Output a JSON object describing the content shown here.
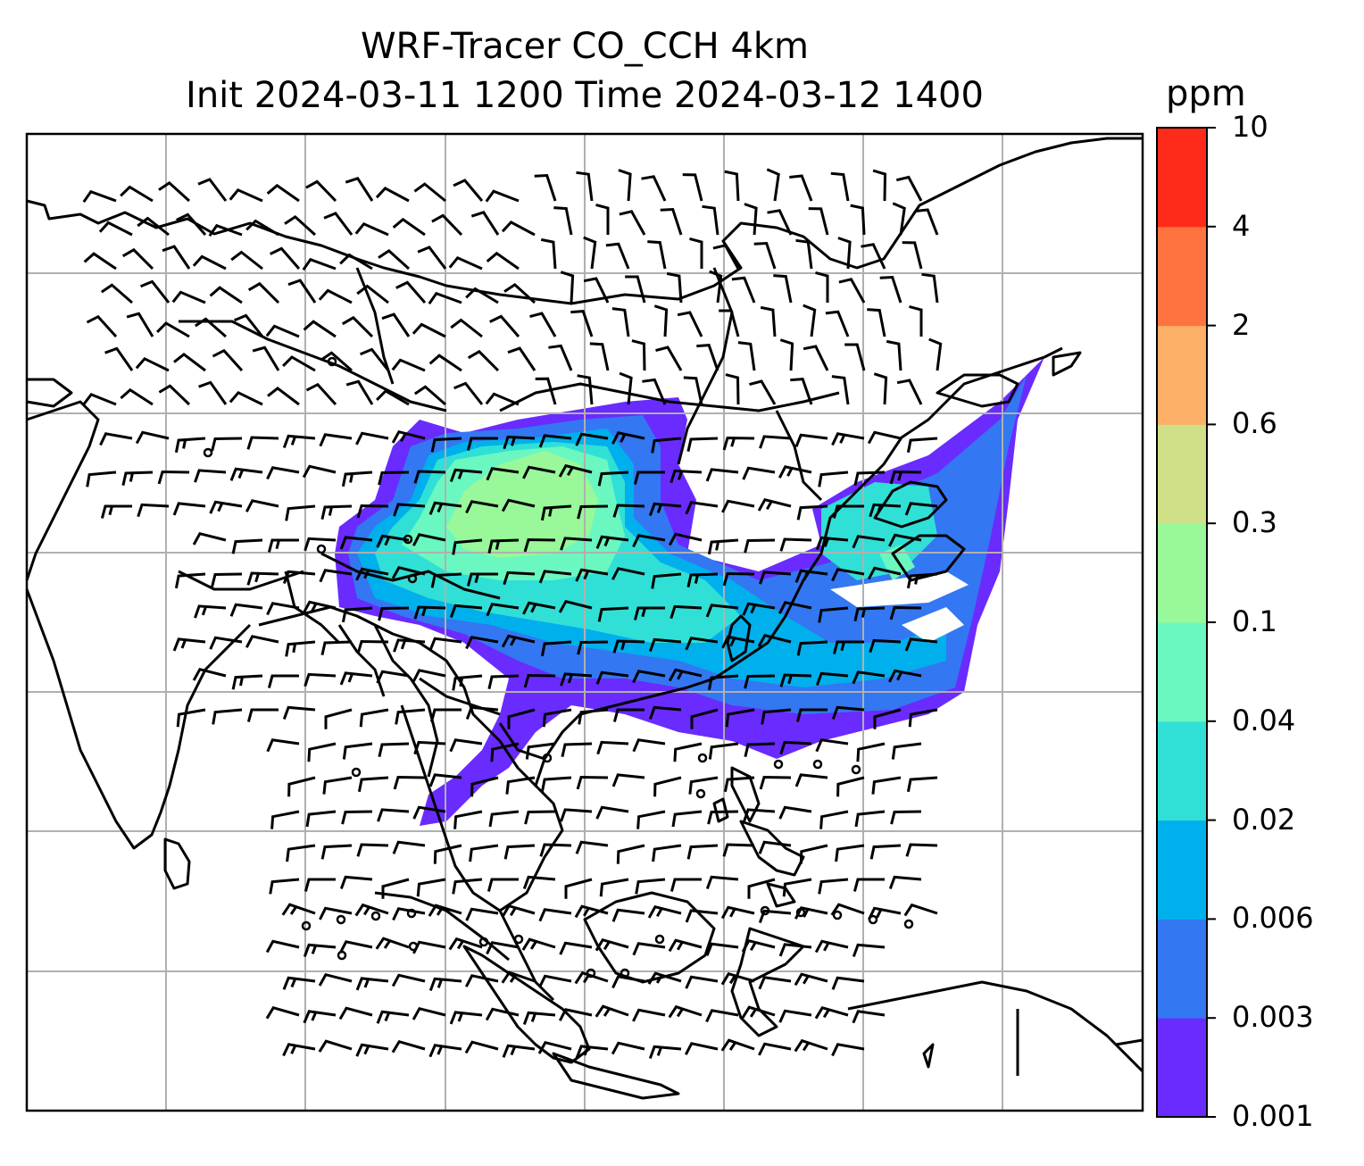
{
  "title": {
    "line1": "WRF-Tracer CO_CCH 4km",
    "line2": "Init 2024-03-11 1200 Time 2024-03-12 1400"
  },
  "colorbar": {
    "unit": "ppm",
    "levels": [
      "0.001",
      "0.003",
      "0.006",
      "0.02",
      "0.04",
      "0.1",
      "0.3",
      "0.6",
      "2",
      "4",
      "10"
    ],
    "colors": [
      "#6a2bff",
      "#3377f2",
      "#00b0ec",
      "#30e0d6",
      "#6af8c0",
      "#98f89a",
      "#cfe088",
      "#fcb067",
      "#ff7340",
      "#ff2b1a"
    ]
  },
  "map": {
    "gridlines": true,
    "background": "#ffffff",
    "coastline_color": "#000000"
  }
}
